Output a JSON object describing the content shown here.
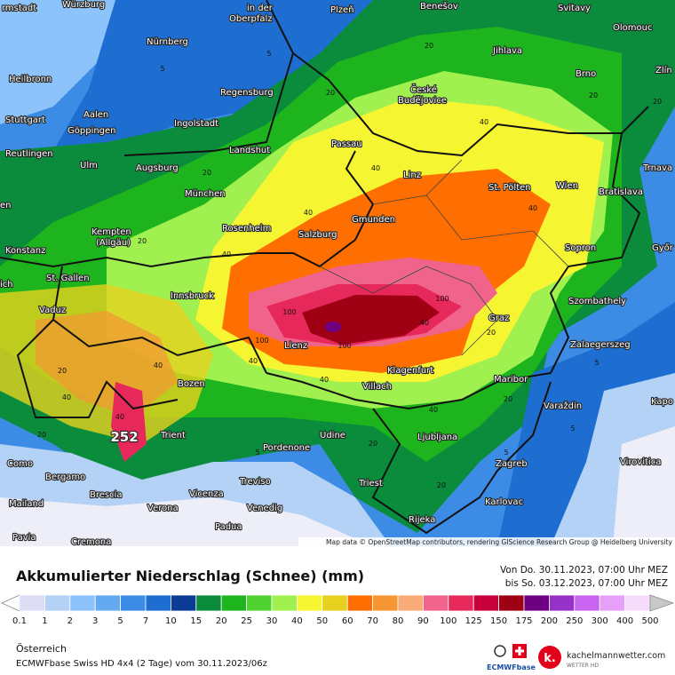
{
  "map": {
    "cities": [
      "rmstadt",
      "Würzburg",
      "in der",
      "Oberpfalz",
      "Plzeň",
      "Benešov",
      "Svitavy",
      "Olomouc",
      "Jihlava",
      "Nürnberg",
      "Heilbronn",
      "Brno",
      "Zlín",
      "Regensburg",
      "České",
      "Budějovice",
      "Aalen",
      "Stuttgart",
      "Ingolstadt",
      "Göppingen",
      "Passau",
      "Reutlingen",
      "Landshut",
      "Ulm",
      "Augsburg",
      "Linz",
      "Trnava",
      "St. Pölten",
      "Wien",
      "Bratislava",
      "München",
      "en",
      "Gmunden",
      "Rosenheim",
      "Salzburg",
      "Kempten",
      "(Allgäu)",
      "Konstanz",
      "Győr",
      "Sopron",
      "St. Gallen",
      "ich",
      "Innsbruck",
      "Szombathely",
      "Vaduz",
      "Graz",
      "Lienz",
      "Zalaegerszeg",
      "Bozen",
      "Klagenfurt",
      "Villach",
      "Maribor",
      "Varaždin",
      "Kapo",
      "Trient",
      "Udine",
      "Ljubljana",
      "Pordenone",
      "Como",
      "Zagreb",
      "Virovitica",
      "Bergamo",
      "Treviso",
      "Triest",
      "Brescia",
      "Vicenza",
      "Karlovac",
      "Mailand",
      "Verona",
      "Venedig",
      "Padua",
      "Rijeka",
      "Pavia",
      "Cremona"
    ],
    "contour_labels": [
      5,
      5,
      20,
      20,
      20,
      20,
      20,
      40,
      40,
      40,
      40,
      20,
      40,
      100,
      100,
      100,
      100,
      40,
      20,
      40,
      40,
      40,
      20,
      5,
      40,
      40,
      20,
      5,
      20,
      5,
      20,
      40,
      20,
      5
    ],
    "max_label": 252,
    "attribution": "Map data © OpenStreetMap contributors, rendering GIScience Research Group @ Heidelberg University"
  },
  "legend": {
    "title": "Akkumulierter Niederschlag (Schnee) (mm)",
    "period_from": "Von Do. 30.11.2023, 07:00 Uhr MEZ",
    "period_to": "bis So. 03.12.2023, 07:00 Uhr MEZ",
    "values": [
      0.1,
      1,
      2,
      3,
      5,
      7,
      10,
      15,
      20,
      25,
      30,
      40,
      50,
      60,
      70,
      80,
      90,
      100,
      125,
      150,
      175,
      200,
      250,
      300,
      400,
      500
    ],
    "colors": [
      "#dcdcf5",
      "#b4d2f5",
      "#8cc3fa",
      "#64aaf0",
      "#3c8ce6",
      "#1e6ed2",
      "#0a3c96",
      "#0a8c3c",
      "#1eb41e",
      "#50d232",
      "#a0f050",
      "#f5f532",
      "#e6d21e",
      "#ff6e00",
      "#f59632",
      "#faaa78",
      "#f0648c",
      "#e6285a",
      "#c8003c",
      "#a00014",
      "#6e0082",
      "#9632c8",
      "#c864f0",
      "#e6a0fa",
      "#f5dcfa"
    ],
    "low_color": "#ffffff",
    "high_color": "#c8c8c8"
  },
  "footer": {
    "region": "Österreich",
    "model": "ECMWFbase Swiss HD 4x4 (2 Tage) vom 30.11.2023/06z",
    "model_logo": "ECMWFbase",
    "logo_text": "kachelmannwetter.com",
    "logo_subtext": "WETTER HD"
  }
}
